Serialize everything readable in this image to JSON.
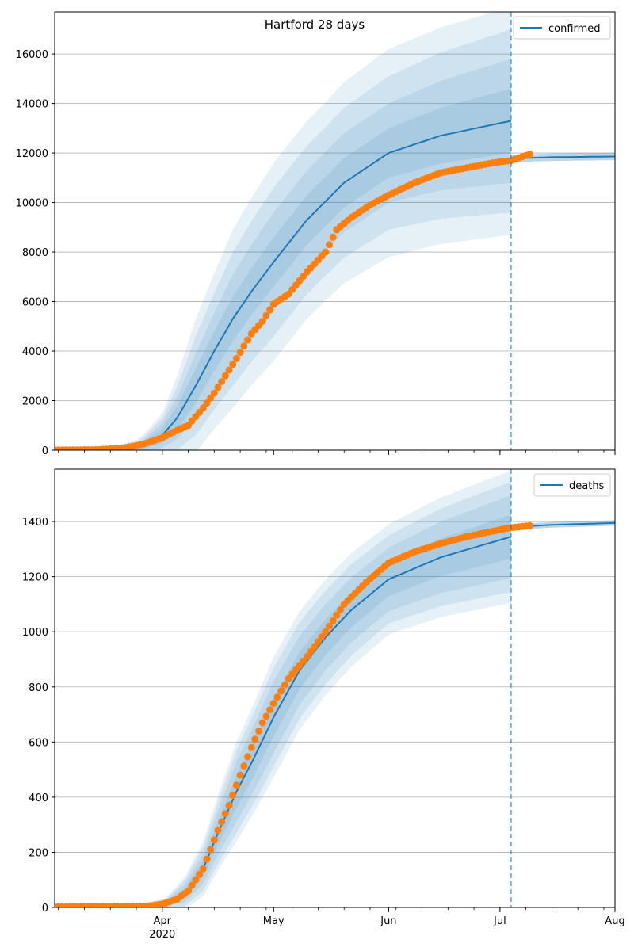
{
  "title": "Hartford 28 days",
  "colors": {
    "model_line": "#1f77b4",
    "band": "#1f77b4",
    "observed": "#ff7f0e",
    "forecast_divider": "#1f77b4",
    "grid": "#b0b0b0"
  },
  "x_axis": {
    "range": [
      "2020-03-03",
      "2020-08-01"
    ],
    "major_ticks": [
      {
        "date": "2020-04-01",
        "label": "Apr",
        "sublabel": "2020"
      },
      {
        "date": "2020-05-01",
        "label": "May",
        "sublabel": ""
      },
      {
        "date": "2020-06-01",
        "label": "Jun",
        "sublabel": ""
      },
      {
        "date": "2020-07-01",
        "label": "Jul",
        "sublabel": ""
      },
      {
        "date": "2020-08-01",
        "label": "Aug",
        "sublabel": ""
      }
    ],
    "minor_tick_interval_days": 7,
    "forecast_start": "2020-07-04"
  },
  "chart_data": [
    {
      "type": "line",
      "series_name": "confirmed",
      "legend_position": "top-right",
      "grid": "horizontal",
      "ylim": [
        0,
        17700
      ],
      "y_ticks": [
        0,
        2000,
        4000,
        6000,
        8000,
        10000,
        12000,
        14000,
        16000
      ],
      "model_anchors": [
        [
          "2020-03-03",
          0
        ],
        [
          "2020-03-20",
          20
        ],
        [
          "2020-03-27",
          200
        ],
        [
          "2020-04-01",
          600
        ],
        [
          "2020-04-05",
          1300
        ],
        [
          "2020-04-10",
          2600
        ],
        [
          "2020-04-15",
          4000
        ],
        [
          "2020-04-20",
          5300
        ],
        [
          "2020-04-25",
          6400
        ],
        [
          "2020-05-01",
          7600
        ],
        [
          "2020-05-10",
          9300
        ],
        [
          "2020-05-20",
          10800
        ],
        [
          "2020-06-01",
          12000
        ],
        [
          "2020-06-15",
          12700
        ],
        [
          "2020-07-04",
          13300
        ]
      ],
      "band_half_widths": [
        [
          [
            "2020-03-03",
            0
          ],
          [
            "2020-03-25",
            60
          ],
          [
            "2020-04-01",
            300
          ],
          [
            "2020-04-10",
            700
          ],
          [
            "2020-04-20",
            900
          ],
          [
            "2020-05-01",
            1000
          ],
          [
            "2020-05-15",
            1000
          ],
          [
            "2020-06-01",
            1000
          ],
          [
            "2020-07-04",
            1300
          ]
        ],
        [
          [
            "2020-03-03",
            0
          ],
          [
            "2020-03-25",
            120
          ],
          [
            "2020-04-01",
            500
          ],
          [
            "2020-04-10",
            1300
          ],
          [
            "2020-04-20",
            1800
          ],
          [
            "2020-05-01",
            2000
          ],
          [
            "2020-05-15",
            2000
          ],
          [
            "2020-06-01",
            2000
          ],
          [
            "2020-07-04",
            2500
          ]
        ],
        [
          [
            "2020-03-03",
            0
          ],
          [
            "2020-03-25",
            200
          ],
          [
            "2020-04-01",
            700
          ],
          [
            "2020-04-10",
            2000
          ],
          [
            "2020-04-20",
            2700
          ],
          [
            "2020-05-01",
            3000
          ],
          [
            "2020-05-15",
            3000
          ],
          [
            "2020-06-01",
            3100
          ],
          [
            "2020-07-04",
            3700
          ]
        ],
        [
          [
            "2020-03-03",
            0
          ],
          [
            "2020-03-25",
            250
          ],
          [
            "2020-04-01",
            900
          ],
          [
            "2020-04-10",
            2700
          ],
          [
            "2020-04-20",
            3600
          ],
          [
            "2020-05-01",
            4000
          ],
          [
            "2020-05-15",
            4000
          ],
          [
            "2020-06-01",
            4200
          ],
          [
            "2020-07-04",
            4600
          ]
        ]
      ],
      "forecast_line": [
        [
          "2020-07-04",
          11780
        ],
        [
          "2020-07-15",
          11830
        ],
        [
          "2020-08-01",
          11860
        ]
      ],
      "forecast_band_half_width": 150,
      "observed_anchors": [
        [
          "2020-03-03",
          5
        ],
        [
          "2020-03-15",
          20
        ],
        [
          "2020-03-22",
          100
        ],
        [
          "2020-03-27",
          250
        ],
        [
          "2020-04-01",
          500
        ],
        [
          "2020-04-05",
          800
        ],
        [
          "2020-04-08",
          1000
        ],
        [
          "2020-04-12",
          1700
        ],
        [
          "2020-04-15",
          2300
        ],
        [
          "2020-04-18",
          3000
        ],
        [
          "2020-04-21",
          3700
        ],
        [
          "2020-04-25",
          4700
        ],
        [
          "2020-04-28",
          5200
        ],
        [
          "2020-05-01",
          5900
        ],
        [
          "2020-05-05",
          6300
        ],
        [
          "2020-05-10",
          7200
        ],
        [
          "2020-05-15",
          8000
        ],
        [
          "2020-05-18",
          8900
        ],
        [
          "2020-05-22",
          9400
        ],
        [
          "2020-05-27",
          9900
        ],
        [
          "2020-06-01",
          10300
        ],
        [
          "2020-06-08",
          10800
        ],
        [
          "2020-06-15",
          11200
        ],
        [
          "2020-06-22",
          11400
        ],
        [
          "2020-06-29",
          11600
        ],
        [
          "2020-07-04",
          11700
        ],
        [
          "2020-07-09",
          11950
        ]
      ]
    },
    {
      "type": "line",
      "series_name": "deaths",
      "legend_position": "top-right",
      "grid": "horizontal",
      "ylim": [
        0,
        1590
      ],
      "y_ticks": [
        0,
        200,
        400,
        600,
        800,
        1000,
        1200,
        1400
      ],
      "model_anchors": [
        [
          "2020-03-03",
          0
        ],
        [
          "2020-03-28",
          2
        ],
        [
          "2020-04-02",
          15
        ],
        [
          "2020-04-07",
          50
        ],
        [
          "2020-04-12",
          140
        ],
        [
          "2020-04-16",
          270
        ],
        [
          "2020-04-21",
          420
        ],
        [
          "2020-04-26",
          550
        ],
        [
          "2020-05-01",
          690
        ],
        [
          "2020-05-08",
          860
        ],
        [
          "2020-05-15",
          980
        ],
        [
          "2020-05-22",
          1080
        ],
        [
          "2020-06-01",
          1190
        ],
        [
          "2020-06-15",
          1270
        ],
        [
          "2020-07-04",
          1345
        ]
      ],
      "band_half_widths": [
        [
          [
            "2020-03-03",
            0
          ],
          [
            "2020-04-02",
            5
          ],
          [
            "2020-04-12",
            30
          ],
          [
            "2020-04-21",
            60
          ],
          [
            "2020-05-01",
            70
          ],
          [
            "2020-05-15",
            65
          ],
          [
            "2020-06-01",
            60
          ],
          [
            "2020-07-04",
            80
          ]
        ],
        [
          [
            "2020-03-03",
            0
          ],
          [
            "2020-04-02",
            10
          ],
          [
            "2020-04-12",
            55
          ],
          [
            "2020-04-21",
            110
          ],
          [
            "2020-05-01",
            130
          ],
          [
            "2020-05-15",
            120
          ],
          [
            "2020-06-01",
            115
          ],
          [
            "2020-07-04",
            150
          ]
        ],
        [
          [
            "2020-03-03",
            0
          ],
          [
            "2020-04-02",
            15
          ],
          [
            "2020-04-12",
            80
          ],
          [
            "2020-04-21",
            150
          ],
          [
            "2020-05-01",
            180
          ],
          [
            "2020-05-15",
            170
          ],
          [
            "2020-06-01",
            160
          ],
          [
            "2020-07-04",
            200
          ]
        ],
        [
          [
            "2020-03-03",
            0
          ],
          [
            "2020-04-02",
            20
          ],
          [
            "2020-04-12",
            100
          ],
          [
            "2020-04-21",
            180
          ],
          [
            "2020-05-01",
            220
          ],
          [
            "2020-05-15",
            210
          ],
          [
            "2020-06-01",
            200
          ],
          [
            "2020-07-04",
            240
          ]
        ]
      ],
      "forecast_line": [
        [
          "2020-07-04",
          1380
        ],
        [
          "2020-07-15",
          1388
        ],
        [
          "2020-08-01",
          1395
        ]
      ],
      "forecast_band_half_width": 10,
      "observed_anchors": [
        [
          "2020-03-03",
          2
        ],
        [
          "2020-03-28",
          5
        ],
        [
          "2020-04-01",
          12
        ],
        [
          "2020-04-05",
          30
        ],
        [
          "2020-04-08",
          60
        ],
        [
          "2020-04-12",
          140
        ],
        [
          "2020-04-16",
          280
        ],
        [
          "2020-04-19",
          370
        ],
        [
          "2020-04-22",
          480
        ],
        [
          "2020-04-25",
          580
        ],
        [
          "2020-04-28",
          670
        ],
        [
          "2020-05-01",
          740
        ],
        [
          "2020-05-05",
          830
        ],
        [
          "2020-05-10",
          910
        ],
        [
          "2020-05-15",
          1000
        ],
        [
          "2020-05-20",
          1100
        ],
        [
          "2020-05-26",
          1180
        ],
        [
          "2020-06-01",
          1250
        ],
        [
          "2020-06-08",
          1290
        ],
        [
          "2020-06-15",
          1320
        ],
        [
          "2020-06-22",
          1345
        ],
        [
          "2020-06-29",
          1365
        ],
        [
          "2020-07-04",
          1378
        ],
        [
          "2020-07-09",
          1385
        ]
      ]
    }
  ]
}
